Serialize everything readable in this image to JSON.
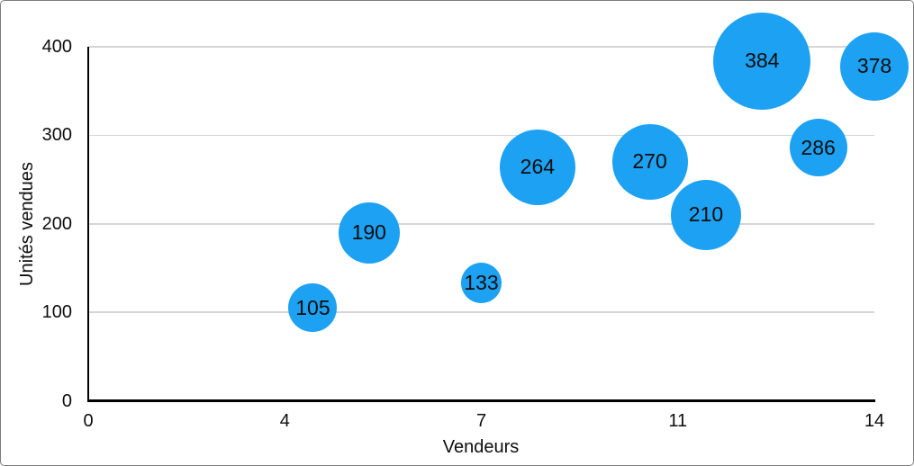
{
  "chart_data": {
    "type": "scatter",
    "subtype": "bubble",
    "title": "",
    "xlabel": "Vendeurs",
    "ylabel": "Unités vendues",
    "xlim": [
      0,
      14
    ],
    "ylim": [
      0,
      400
    ],
    "grid": "horizontal-only",
    "legend": "none",
    "x_ticks": [
      {
        "value": 0,
        "label": "0"
      },
      {
        "value": 3.5,
        "label": "4"
      },
      {
        "value": 7,
        "label": "7"
      },
      {
        "value": 10.5,
        "label": "11"
      },
      {
        "value": 14,
        "label": "14"
      }
    ],
    "y_ticks": [
      {
        "value": 0,
        "label": "0"
      },
      {
        "value": 100,
        "label": "100"
      },
      {
        "value": 200,
        "label": "200"
      },
      {
        "value": 300,
        "label": "300"
      },
      {
        "value": 400,
        "label": "400"
      }
    ],
    "points": [
      {
        "x": 4,
        "y": 105,
        "label": "105",
        "radius_px": 27
      },
      {
        "x": 5,
        "y": 190,
        "label": "190",
        "radius_px": 34
      },
      {
        "x": 7,
        "y": 133,
        "label": "133",
        "radius_px": 22.5
      },
      {
        "x": 8,
        "y": 264,
        "label": "264",
        "radius_px": 42
      },
      {
        "x": 10,
        "y": 270,
        "label": "270",
        "radius_px": 42
      },
      {
        "x": 11,
        "y": 210,
        "label": "210",
        "radius_px": 39
      },
      {
        "x": 12,
        "y": 384,
        "label": "384",
        "radius_px": 54
      },
      {
        "x": 13,
        "y": 286,
        "label": "286",
        "radius_px": 32
      },
      {
        "x": 14,
        "y": 378,
        "label": "378",
        "radius_px": 38
      }
    ],
    "colors": {
      "bubble": "#1DA1F2",
      "bubble_label": "#0d0d0d",
      "gridline": "#d5d5d5",
      "axis_line": "#000000",
      "tick_label": "#0d0d0d",
      "axis_title": "#0d0d0d",
      "frame_border": "#7c7c7c",
      "background": "#ffffff"
    }
  }
}
